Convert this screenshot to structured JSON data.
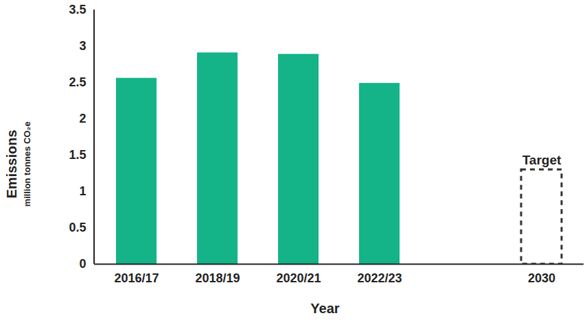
{
  "chart_data": {
    "type": "bar",
    "categories": [
      "2016/17",
      "2018/19",
      "2020/21",
      "2022/23",
      null,
      "2030"
    ],
    "series": [
      {
        "values": [
          2.56,
          2.91,
          2.89,
          2.49,
          null,
          null
        ],
        "color": "#14b488"
      },
      {
        "name": "Target",
        "values": [
          null,
          null,
          null,
          null,
          null,
          1.3
        ],
        "color": "#333333",
        "line_style": "dashed"
      }
    ],
    "x_label": "Year",
    "y_label": "Emissions",
    "y_label_units": "million tonnes CO₂e",
    "ylim": [
      0,
      3.5
    ],
    "yticks": [
      0,
      0.5,
      1,
      1.5,
      2,
      2.5,
      3,
      3.5
    ],
    "grid": false
  }
}
